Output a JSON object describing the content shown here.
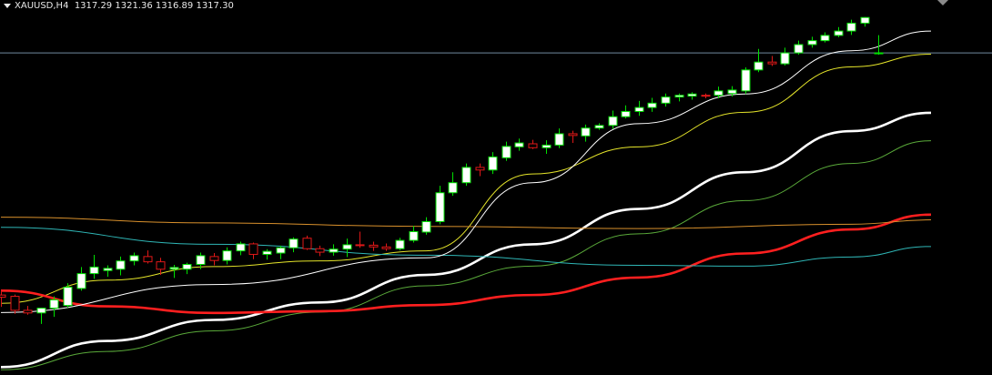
{
  "header": {
    "symbol": "XAUUSD,H4",
    "open": "1317.29",
    "high": "1321.36",
    "low": "1316.89",
    "close": "1317.30"
  },
  "colors": {
    "background": "#000000",
    "bull": "#ffffff",
    "bear": "#e01818",
    "bull_wick": "#00e000",
    "bear_wick": "#e01818",
    "current_price_line": "#6f8aa0"
  },
  "chart_data": {
    "type": "candlestick",
    "symbol": "XAUUSD",
    "timeframe": "H4",
    "current_price": 1317.3,
    "ylim": [
      1243.6,
      1329.4
    ],
    "grid": false,
    "candles": [
      [
        1261.9,
        1263.0,
        1259.2,
        1261.4
      ],
      [
        1261.6,
        1262.0,
        1257.6,
        1258.4
      ],
      [
        1258.4,
        1259.4,
        1257.4,
        1257.8
      ],
      [
        1257.8,
        1259.0,
        1255.3,
        1258.9
      ],
      [
        1258.9,
        1261.6,
        1256.9,
        1260.8
      ],
      [
        1259.5,
        1264.6,
        1259.0,
        1263.7
      ],
      [
        1263.4,
        1268.3,
        1262.9,
        1266.8
      ],
      [
        1266.8,
        1271.1,
        1265.6,
        1268.3
      ],
      [
        1267.5,
        1268.7,
        1266.1,
        1268.0
      ],
      [
        1267.8,
        1270.7,
        1266.4,
        1269.7
      ],
      [
        1269.7,
        1271.6,
        1268.7,
        1270.9
      ],
      [
        1270.7,
        1272.1,
        1269.1,
        1269.5
      ],
      [
        1269.5,
        1270.4,
        1266.5,
        1267.8
      ],
      [
        1267.8,
        1268.8,
        1265.8,
        1268.2
      ],
      [
        1267.8,
        1269.3,
        1266.7,
        1268.9
      ],
      [
        1268.9,
        1271.6,
        1267.8,
        1270.9
      ],
      [
        1270.7,
        1271.5,
        1268.7,
        1269.8
      ],
      [
        1269.8,
        1272.8,
        1268.9,
        1272.0
      ],
      [
        1272.0,
        1274.1,
        1271.0,
        1273.6
      ],
      [
        1273.6,
        1273.9,
        1270.1,
        1271.2
      ],
      [
        1271.2,
        1272.4,
        1270.0,
        1271.9
      ],
      [
        1271.5,
        1273.2,
        1270.1,
        1272.7
      ],
      [
        1272.7,
        1275.1,
        1271.7,
        1274.7
      ],
      [
        1274.9,
        1275.5,
        1272.2,
        1272.5
      ],
      [
        1272.5,
        1273.2,
        1270.8,
        1271.7
      ],
      [
        1271.7,
        1273.5,
        1270.9,
        1272.4
      ],
      [
        1272.4,
        1274.8,
        1270.6,
        1273.4
      ],
      [
        1273.4,
        1276.4,
        1272.7,
        1273.3
      ],
      [
        1273.3,
        1274.1,
        1272.0,
        1272.9
      ],
      [
        1272.9,
        1273.7,
        1272.0,
        1272.5
      ],
      [
        1272.5,
        1275.0,
        1272.1,
        1274.4
      ],
      [
        1274.4,
        1277.7,
        1273.9,
        1276.4
      ],
      [
        1276.3,
        1279.7,
        1275.7,
        1278.7
      ],
      [
        1278.7,
        1286.9,
        1278.1,
        1285.3
      ],
      [
        1285.3,
        1290.0,
        1284.6,
        1287.6
      ],
      [
        1287.6,
        1292.0,
        1286.9,
        1291.1
      ],
      [
        1291.1,
        1292.0,
        1289.1,
        1290.5
      ],
      [
        1290.5,
        1294.6,
        1289.6,
        1293.5
      ],
      [
        1293.3,
        1297.0,
        1292.6,
        1295.9
      ],
      [
        1295.8,
        1297.7,
        1294.9,
        1296.7
      ],
      [
        1296.5,
        1297.4,
        1295.3,
        1295.6
      ],
      [
        1295.6,
        1297.3,
        1294.2,
        1296.2
      ],
      [
        1296.2,
        1300.0,
        1295.5,
        1298.8
      ],
      [
        1298.8,
        1299.5,
        1296.7,
        1298.4
      ],
      [
        1298.3,
        1300.9,
        1297.0,
        1300.1
      ],
      [
        1300.1,
        1301.2,
        1299.7,
        1300.7
      ],
      [
        1300.7,
        1304.1,
        1299.9,
        1302.7
      ],
      [
        1302.7,
        1305.3,
        1302.3,
        1303.9
      ],
      [
        1303.9,
        1306.3,
        1302.9,
        1304.8
      ],
      [
        1304.8,
        1307.0,
        1303.8,
        1305.8
      ],
      [
        1305.8,
        1308.0,
        1305.0,
        1307.2
      ],
      [
        1307.2,
        1308.0,
        1306.2,
        1307.6
      ],
      [
        1307.4,
        1308.3,
        1306.6,
        1307.9
      ],
      [
        1307.6,
        1308.0,
        1306.9,
        1307.4
      ],
      [
        1307.6,
        1309.6,
        1306.9,
        1308.6
      ],
      [
        1308.0,
        1309.7,
        1307.3,
        1308.8
      ],
      [
        1308.6,
        1314.0,
        1307.9,
        1313.4
      ],
      [
        1313.4,
        1318.2,
        1312.9,
        1315.2
      ],
      [
        1315.2,
        1316.6,
        1314.3,
        1314.8
      ],
      [
        1314.8,
        1318.5,
        1314.4,
        1317.3
      ],
      [
        1317.3,
        1320.1,
        1316.9,
        1319.2
      ],
      [
        1319.2,
        1321.0,
        1318.5,
        1320.1
      ],
      [
        1320.1,
        1322.0,
        1319.7,
        1321.3
      ],
      [
        1321.3,
        1323.2,
        1320.9,
        1322.3
      ],
      [
        1322.3,
        1324.9,
        1321.4,
        1324.1
      ],
      [
        1324.1,
        1325.5,
        1323.3,
        1325.4
      ],
      [
        1317.29,
        1321.36,
        1316.89,
        1317.3
      ]
    ],
    "moving_averages": [
      {
        "color": "#ffffff",
        "width": 2.6,
        "values": [
          [
            0,
            1245.4
          ],
          [
            8,
            1251.4
          ],
          [
            16,
            1256.2
          ],
          [
            24,
            1260.2
          ],
          [
            32,
            1266.5
          ],
          [
            40,
            1273.5
          ],
          [
            48,
            1281.6
          ],
          [
            56,
            1290.0
          ],
          [
            64,
            1299.4
          ],
          [
            70,
            1303.6
          ]
        ]
      },
      {
        "color": "#e5e52a",
        "width": 1,
        "values": [
          [
            0,
            1260.0
          ],
          [
            8,
            1265.3
          ],
          [
            16,
            1268.4
          ],
          [
            24,
            1269.7
          ],
          [
            32,
            1272.0
          ],
          [
            40,
            1289.6
          ],
          [
            48,
            1295.8
          ],
          [
            56,
            1303.7
          ],
          [
            64,
            1314.1
          ],
          [
            70,
            1317.0
          ]
        ]
      },
      {
        "color": "#5aaa3a",
        "width": 1,
        "values": [
          [
            0,
            1244.8
          ],
          [
            8,
            1249.0
          ],
          [
            16,
            1253.7
          ],
          [
            24,
            1258.0
          ],
          [
            32,
            1264.0
          ],
          [
            40,
            1268.5
          ],
          [
            48,
            1275.9
          ],
          [
            56,
            1283.5
          ],
          [
            64,
            1292.0
          ],
          [
            70,
            1297.2
          ]
        ]
      },
      {
        "color": "#ff1f1f",
        "width": 2.6,
        "values": [
          [
            0,
            1262.9
          ],
          [
            8,
            1259.3
          ],
          [
            16,
            1257.8
          ],
          [
            24,
            1258.2
          ],
          [
            32,
            1259.6
          ],
          [
            40,
            1261.9
          ],
          [
            48,
            1265.9
          ],
          [
            56,
            1271.4
          ],
          [
            64,
            1276.9
          ],
          [
            70,
            1280.3
          ]
        ]
      },
      {
        "color": "#d8902c",
        "width": 1,
        "values": [
          [
            0,
            1279.7
          ],
          [
            16,
            1278.4
          ],
          [
            32,
            1277.6
          ],
          [
            48,
            1277.1
          ],
          [
            64,
            1278.1
          ],
          [
            70,
            1279.1
          ]
        ]
      },
      {
        "color": "#2fb6b6",
        "width": 1,
        "values": [
          [
            0,
            1277.4
          ],
          [
            16,
            1273.5
          ],
          [
            32,
            1271.0
          ],
          [
            48,
            1268.7
          ],
          [
            56,
            1268.5
          ],
          [
            64,
            1270.6
          ],
          [
            70,
            1273.0
          ]
        ]
      },
      {
        "color": "#ffffff",
        "width": 1,
        "values": [
          [
            0,
            1257.9
          ],
          [
            16,
            1264.3
          ],
          [
            32,
            1270.4
          ],
          [
            40,
            1287.6
          ],
          [
            48,
            1301.1
          ],
          [
            56,
            1307.9
          ],
          [
            64,
            1317.8
          ],
          [
            70,
            1322.3
          ]
        ]
      }
    ]
  }
}
